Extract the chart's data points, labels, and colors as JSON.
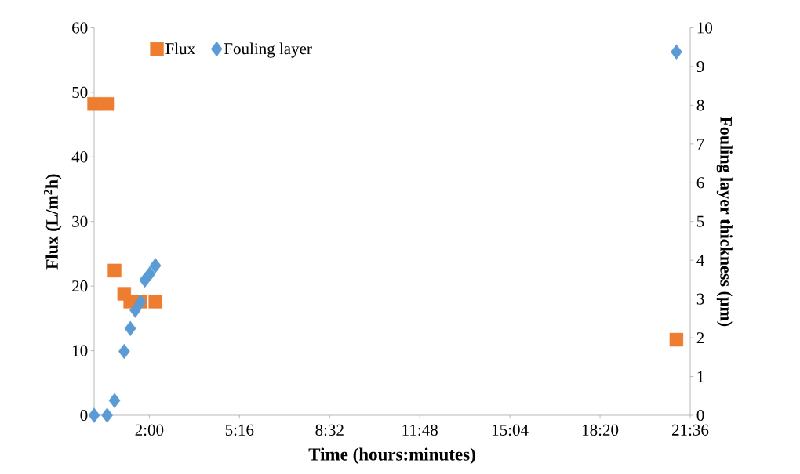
{
  "chart_data": {
    "type": "scatter",
    "xlabel": "Time (hours:minutes)",
    "ylabel": "Flux (L/m$^{2}$h)",
    "y2label": "Fouling layer thickness (µm)",
    "x": [
      0,
      0.47,
      0.74,
      1.09,
      1.31,
      1.49,
      1.68,
      1.84,
      2.02,
      2.22,
      21.1
    ],
    "series": [
      {
        "name": "Flux",
        "color": "#ed7d31",
        "marker": "square",
        "values": [
          48.2,
          48.2,
          22.4,
          18.8,
          17.6,
          null,
          17.6,
          null,
          null,
          17.6,
          11.7
        ]
      },
      {
        "name": "Fouling layer",
        "color": "#5b9bd5",
        "marker": "diamond",
        "axis": "y2",
        "values": [
          0,
          0,
          0.38,
          1.65,
          2.24,
          2.71,
          2.92,
          3.49,
          3.65,
          3.86,
          9.38
        ]
      }
    ],
    "xlim": [
      0,
      21.6
    ],
    "xticks": [
      {
        "value": 2,
        "label": "2:00"
      },
      {
        "value": 5.2667,
        "label": "5:16"
      },
      {
        "value": 8.5333,
        "label": "8:32"
      },
      {
        "value": 11.8,
        "label": "11:48"
      },
      {
        "value": 15.0667,
        "label": "15:04"
      },
      {
        "value": 18.3333,
        "label": "18:20"
      },
      {
        "value": 21.6,
        "label": "21:36"
      }
    ],
    "ylim": [
      0,
      60
    ],
    "yticks": [
      0,
      10,
      20,
      30,
      40,
      50,
      60
    ],
    "y2lim": [
      0,
      10
    ],
    "y2ticks": [
      0,
      1,
      2,
      3,
      4,
      5,
      6,
      7,
      8,
      9,
      10
    ],
    "legend": "top left",
    "grid": false
  }
}
